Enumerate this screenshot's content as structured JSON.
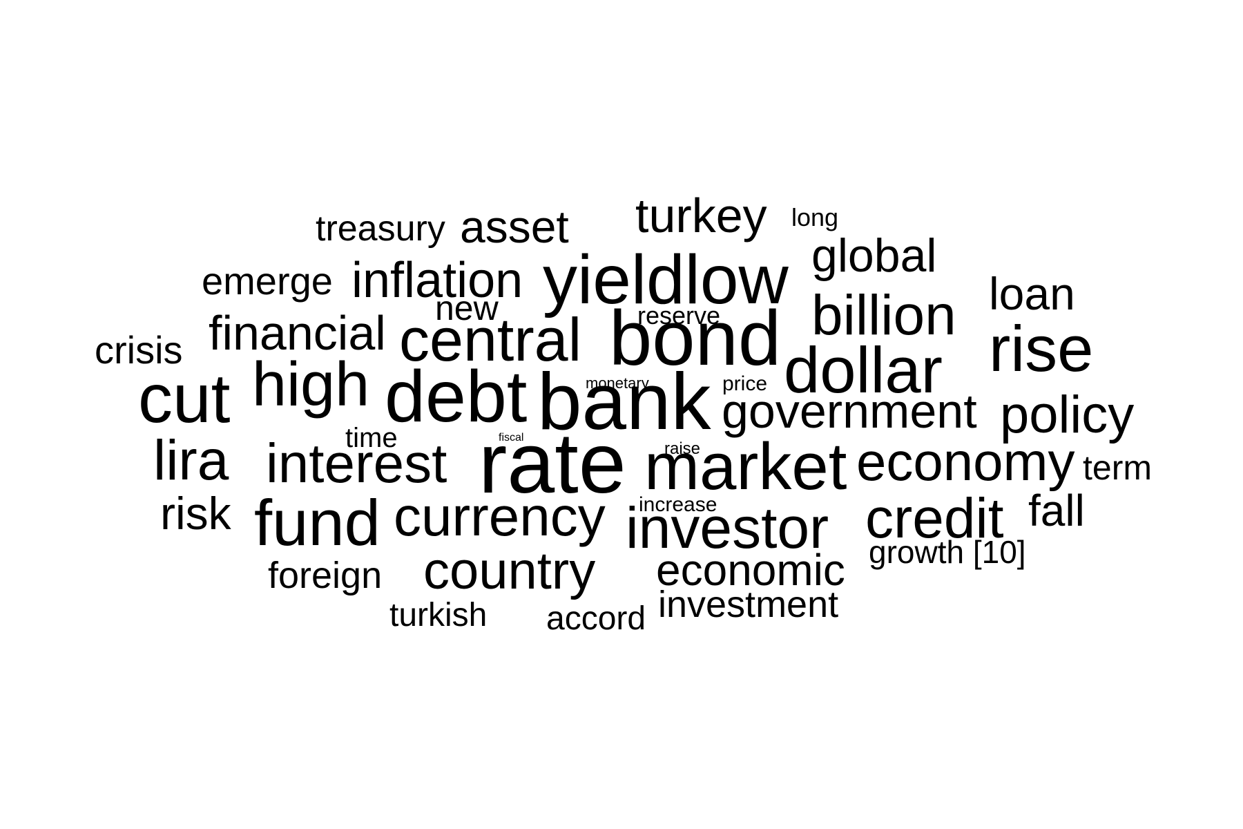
{
  "wordcloud": {
    "text_color": "#000000",
    "background": "#ffffff",
    "words": [
      {
        "key": "treasury",
        "text": "treasury"
      },
      {
        "key": "asset",
        "text": "asset"
      },
      {
        "key": "turkey",
        "text": "turkey"
      },
      {
        "key": "long",
        "text": "long"
      },
      {
        "key": "global",
        "text": "global"
      },
      {
        "key": "emerge",
        "text": "emerge"
      },
      {
        "key": "inflation",
        "text": "inflation"
      },
      {
        "key": "yieldlow",
        "text": "yieldlow"
      },
      {
        "key": "loan",
        "text": "loan"
      },
      {
        "key": "new",
        "text": "new"
      },
      {
        "key": "billion",
        "text": "billion"
      },
      {
        "key": "reserve",
        "text": "reserve"
      },
      {
        "key": "financial",
        "text": "financial"
      },
      {
        "key": "crisis",
        "text": "crisis"
      },
      {
        "key": "central",
        "text": "central"
      },
      {
        "key": "bond",
        "text": "bond"
      },
      {
        "key": "rise",
        "text": "rise"
      },
      {
        "key": "dollar",
        "text": "dollar"
      },
      {
        "key": "high",
        "text": "high"
      },
      {
        "key": "cut",
        "text": "cut"
      },
      {
        "key": "debt",
        "text": "debt"
      },
      {
        "key": "monetary",
        "text": "monetary"
      },
      {
        "key": "price",
        "text": "price"
      },
      {
        "key": "bank",
        "text": "bank"
      },
      {
        "key": "government",
        "text": "government"
      },
      {
        "key": "policy",
        "text": "policy"
      },
      {
        "key": "time",
        "text": "time"
      },
      {
        "key": "fiscal",
        "text": "fiscal"
      },
      {
        "key": "lira",
        "text": "lira"
      },
      {
        "key": "raise",
        "text": "raise"
      },
      {
        "key": "interest",
        "text": "interest"
      },
      {
        "key": "rate",
        "text": "rate"
      },
      {
        "key": "market",
        "text": "market"
      },
      {
        "key": "economy",
        "text": "economy"
      },
      {
        "key": "term",
        "text": "term"
      },
      {
        "key": "risk",
        "text": "risk"
      },
      {
        "key": "increase",
        "text": "increase"
      },
      {
        "key": "fund",
        "text": "fund"
      },
      {
        "key": "currency",
        "text": "currency"
      },
      {
        "key": "fall",
        "text": "fall"
      },
      {
        "key": "credit",
        "text": "credit"
      },
      {
        "key": "investor",
        "text": "investor"
      },
      {
        "key": "growth",
        "text": "growth [10]"
      },
      {
        "key": "foreign",
        "text": "foreign"
      },
      {
        "key": "country",
        "text": "country"
      },
      {
        "key": "economic",
        "text": "economic"
      },
      {
        "key": "turkish",
        "text": "turkish"
      },
      {
        "key": "accord",
        "text": "accord"
      },
      {
        "key": "investment",
        "text": "investment"
      }
    ]
  }
}
